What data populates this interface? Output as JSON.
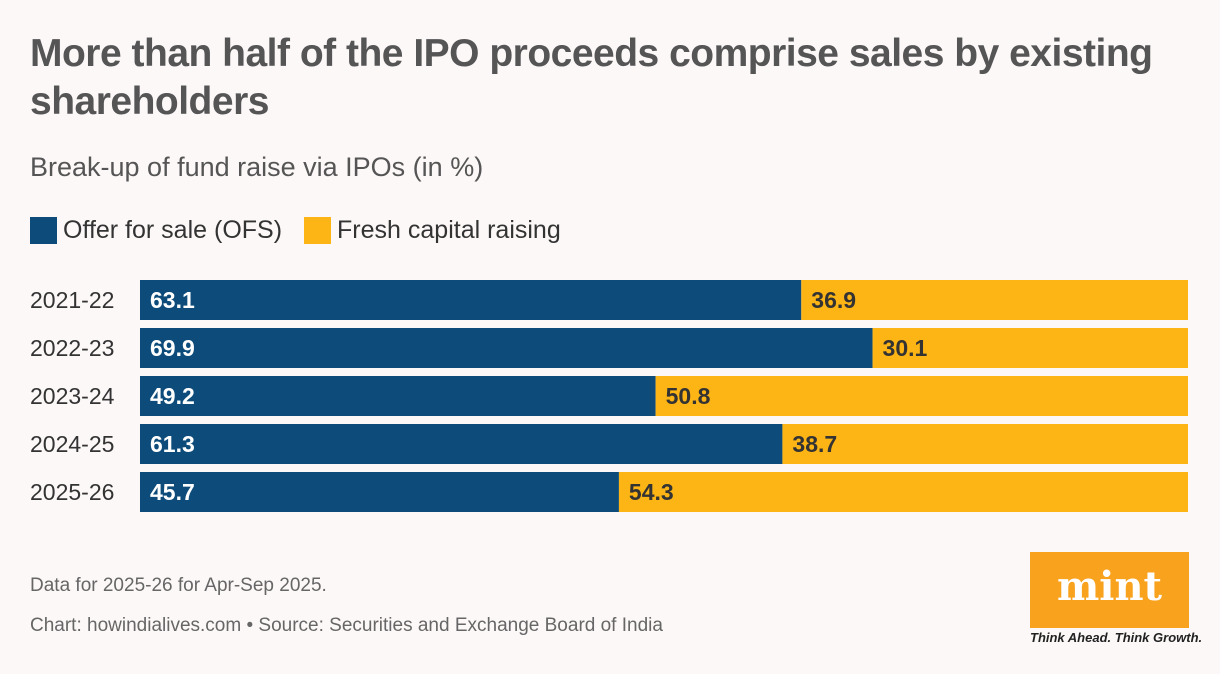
{
  "title": "More than half of the IPO proceeds comprise sales by existing shareholders",
  "subtitle": "Break-up of fund raise via IPOs (in %)",
  "note": "Data for 2025-26 for Apr-Sep 2025.",
  "source": "Chart: howindialives.com • Source: Securities and Exchange Board of India",
  "logo": {
    "text": "mint",
    "tagline": "Think Ahead. Think Growth."
  },
  "chart_data": {
    "type": "bar",
    "orientation": "horizontal",
    "stacked": true,
    "categories": [
      "2021-22",
      "2022-23",
      "2023-24",
      "2024-25",
      "2025-26"
    ],
    "series": [
      {
        "name": "Offer for sale (OFS)",
        "color": "#0d4c7a",
        "values": [
          63.1,
          69.9,
          49.2,
          61.3,
          45.7
        ]
      },
      {
        "name": "Fresh capital raising",
        "color": "#fdb515",
        "values": [
          36.9,
          30.1,
          50.8,
          38.7,
          54.3
        ]
      }
    ],
    "xlim": [
      0,
      100
    ],
    "grid": false,
    "legend": "top-left"
  }
}
